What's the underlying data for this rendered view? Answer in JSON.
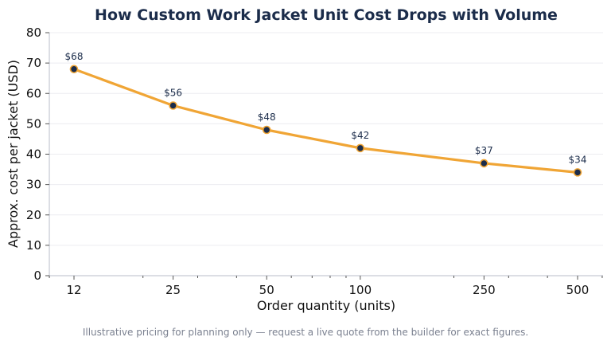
{
  "chart_data": {
    "type": "line",
    "title": "How Custom Work Jacket Unit Cost Drops with Volume",
    "xlabel": "Order quantity (units)",
    "ylabel": "Approx. cost per jacket (USD)",
    "x_scale": "log",
    "x": [
      12,
      25,
      50,
      100,
      250,
      500
    ],
    "x_tick_labels": [
      "12",
      "25",
      "50",
      "100",
      "250",
      "500"
    ],
    "values": [
      68,
      56,
      48,
      42,
      37,
      34
    ],
    "data_labels": [
      "$68",
      "$56",
      "$48",
      "$42",
      "$37",
      "$34"
    ],
    "ylim": [
      0,
      80
    ],
    "y_ticks": [
      0,
      10,
      20,
      30,
      40,
      50,
      60,
      70,
      80
    ],
    "grid": "horizontal",
    "line_color": "#f0a535",
    "marker_color": "#1b2c4a",
    "title_color": "#1b2c4a"
  },
  "footnote": "Illustrative pricing for planning only — request a live quote from the builder for exact figures."
}
